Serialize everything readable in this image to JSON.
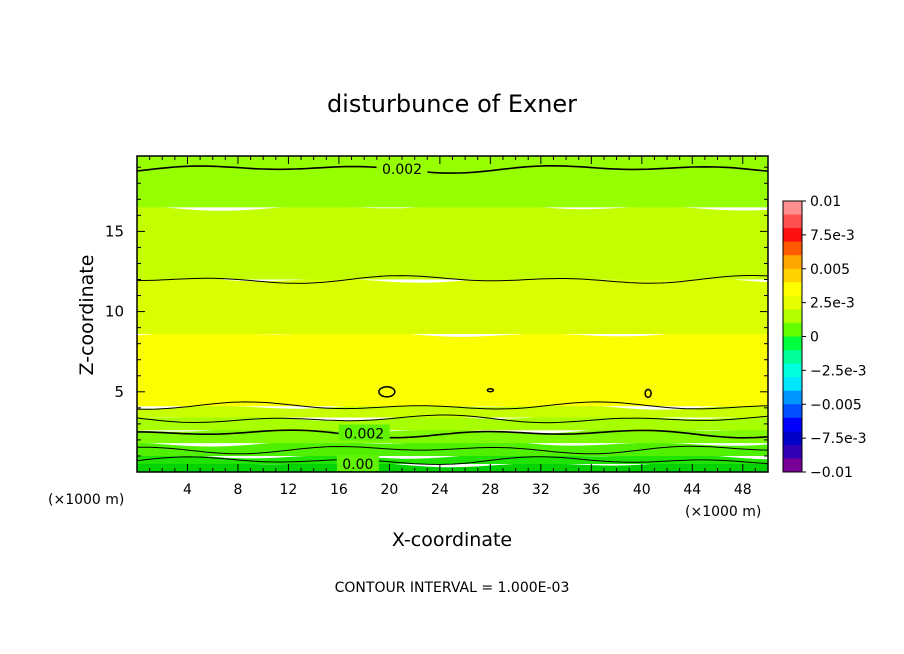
{
  "chart_data": {
    "type": "heatmap",
    "title": "disturbunce of Exner",
    "xlabel": "X-coordinate",
    "ylabel": "Z-coordinate",
    "x_unit": "(×1000 m)",
    "y_unit": "(×1000 m)",
    "xlim": [
      0,
      50
    ],
    "ylim": [
      0,
      19.7
    ],
    "x_ticks": [
      4,
      8,
      12,
      16,
      20,
      24,
      28,
      32,
      36,
      40,
      44,
      48
    ],
    "y_ticks": [
      5,
      10,
      15
    ],
    "colorbar": {
      "labels": [
        "0.01",
        "7.5e-3",
        "0.005",
        "2.5e-3",
        "0",
        "−2.5e-3",
        "−0.005",
        "−7.5e-3",
        "−0.01"
      ],
      "colors": [
        "#ff9090",
        "#ff5050",
        "#ff1010",
        "#ff5a00",
        "#ffa500",
        "#ffd200",
        "#ffff00",
        "#e6ff00",
        "#b4ff00",
        "#64ff00",
        "#00ff3c",
        "#00ff96",
        "#00ffdc",
        "#00e6ff",
        "#0096ff",
        "#0050ff",
        "#0000ff",
        "#0000c8",
        "#3200b4",
        "#780096"
      ]
    },
    "bands_by_height": [
      {
        "z_top": 0.5,
        "color": "#00d200"
      },
      {
        "z_top": 1.0,
        "color": "#20e400"
      },
      {
        "z_top": 1.8,
        "color": "#50f000"
      },
      {
        "z_top": 2.6,
        "color": "#80fa00"
      },
      {
        "z_top": 3.4,
        "color": "#a8ff00"
      },
      {
        "z_top": 4.1,
        "color": "#c8ff00"
      },
      {
        "z_top": 8.6,
        "color": "#fcff00"
      },
      {
        "z_top": 12.0,
        "color": "#dcff00"
      },
      {
        "z_top": 16.5,
        "color": "#c4ff00"
      },
      {
        "z_top": 19.7,
        "color": "#96ff00"
      }
    ],
    "contour_labels": [
      {
        "x": 21.0,
        "z": 18.9,
        "text": "0.002"
      },
      {
        "x": 18.0,
        "z": 2.4,
        "text": "0.002"
      },
      {
        "x": 17.5,
        "z": 0.5,
        "text": "0.00"
      }
    ],
    "footer": "CONTOUR INTERVAL = 1.000E-03"
  }
}
